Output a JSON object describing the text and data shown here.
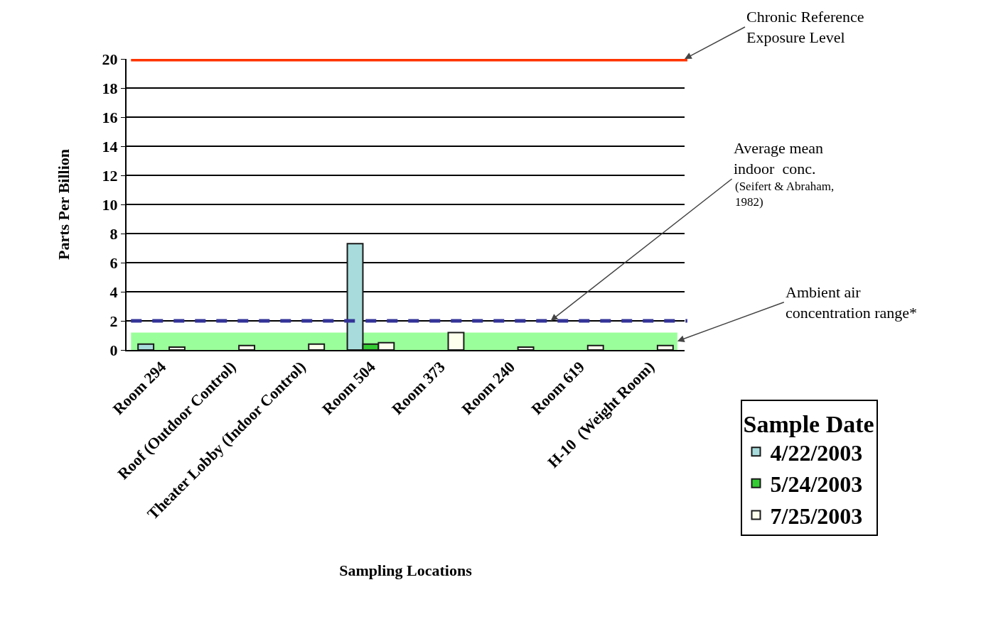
{
  "chart_data": {
    "type": "bar",
    "xlabel": "Sampling Locations",
    "ylabel": "Parts Per Billion",
    "legend_title": "Sample Date",
    "categories": [
      "Room 294",
      "Roof (Outdoor Control)",
      "Theater Lobby (Indoor Control)",
      "Room 504",
      "Room 373",
      "Room 240",
      "Room 619",
      "H-10  (Weight Room)"
    ],
    "series": [
      {
        "name": "4/22/2003",
        "color": "#a8dcdc",
        "values": [
          0.4,
          null,
          null,
          7.3,
          null,
          null,
          null,
          null
        ]
      },
      {
        "name": "5/24/2003",
        "color": "#33cc33",
        "values": [
          null,
          null,
          null,
          0.4,
          null,
          null,
          null,
          null
        ]
      },
      {
        "name": "7/25/2003",
        "color": "#ffffee",
        "values": [
          0.2,
          0.3,
          0.4,
          0.5,
          1.2,
          0.2,
          0.3,
          0.3
        ]
      }
    ],
    "ylim": [
      0,
      20
    ],
    "yticks": [
      0,
      2,
      4,
      6,
      8,
      10,
      12,
      14,
      16,
      18,
      20
    ],
    "grid": "y",
    "legend": "right",
    "ref_lines": [
      {
        "axis": "y",
        "value": 20,
        "label": "Chronic Reference\nExposure Level",
        "color": "#ff3300",
        "line_style": "solid"
      },
      {
        "axis": "y",
        "value": 2,
        "label": "Average mean\nindoor  conc.",
        "color": "#333399",
        "line_style": "dashed"
      }
    ],
    "bands": [
      {
        "axis": "y",
        "from": 0,
        "to": 1.2,
        "label": "Ambient air\nconcentration range*",
        "color": "#99ff99"
      }
    ],
    "annotations": [
      "(Seifert & Abraham,\n1982)"
    ]
  }
}
